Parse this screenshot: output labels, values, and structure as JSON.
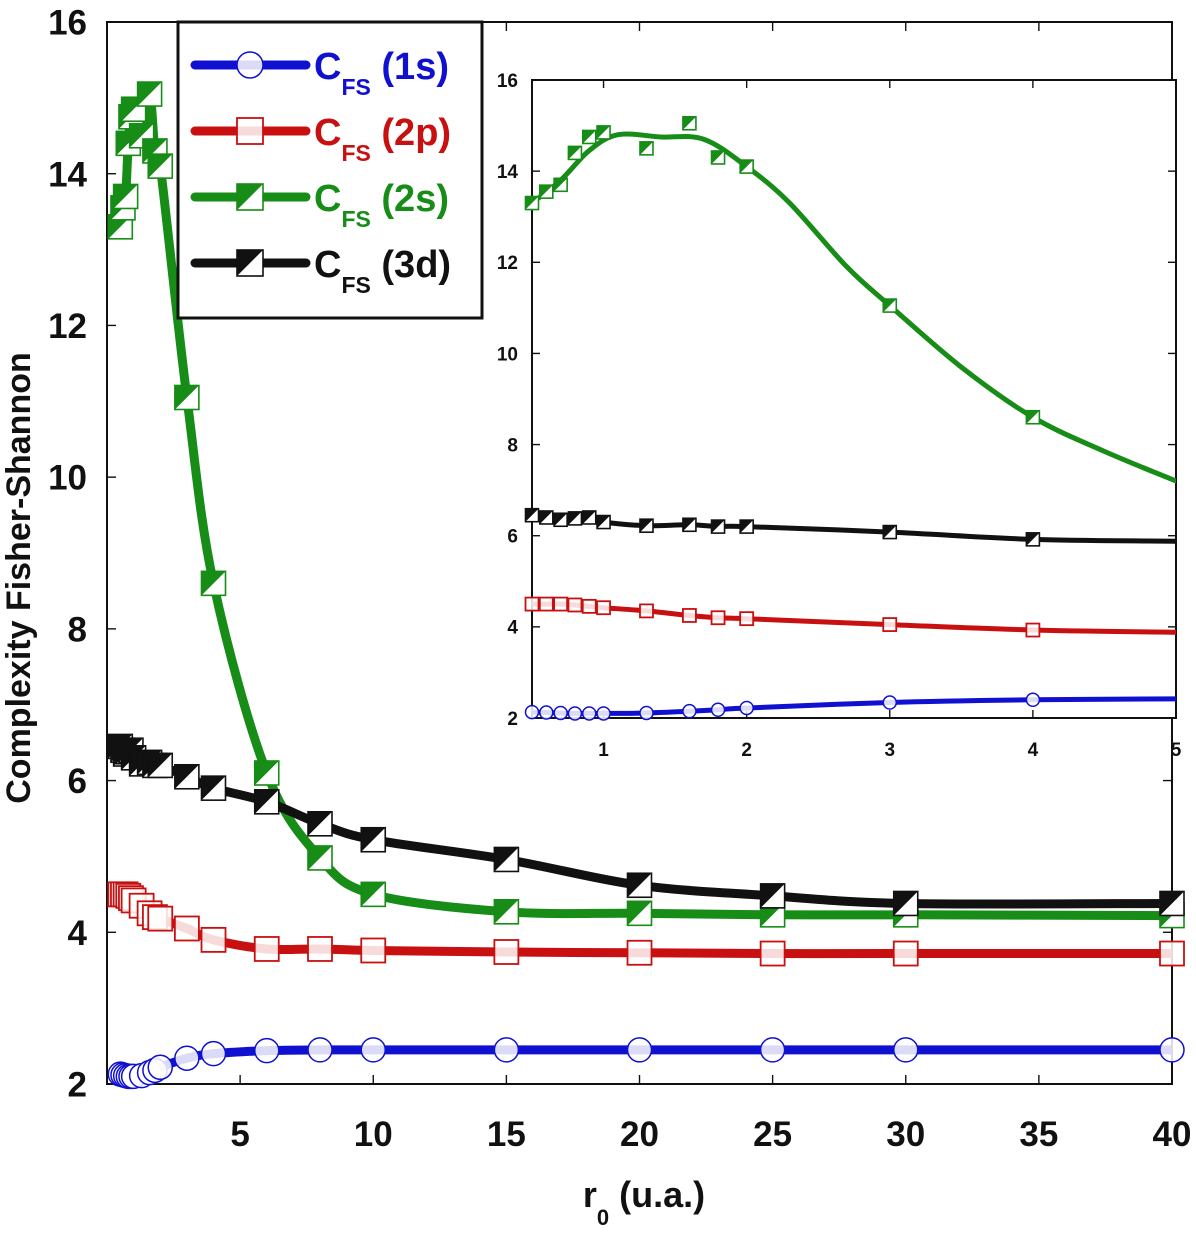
{
  "chart_data": [
    {
      "id": "main",
      "type": "line",
      "title": "",
      "xlabel_main": "r",
      "xlabel_sub": "0",
      "xlabel_tail": " (u.a.)",
      "ylabel": "Complexity Fisher-Shannon",
      "xlim": [
        0,
        40
      ],
      "ylim": [
        2,
        16
      ],
      "x_ticks": [
        5,
        10,
        15,
        20,
        25,
        30,
        35,
        40
      ],
      "y_ticks": [
        2,
        4,
        6,
        8,
        10,
        12,
        14,
        16
      ],
      "grid": false,
      "series": [
        {
          "key": "s1s",
          "color": "#1010d0",
          "marker": "circle",
          "x": [
            0.5,
            0.6,
            0.7,
            0.8,
            0.9,
            1.0,
            1.3,
            1.6,
            1.8,
            2,
            3,
            4,
            6,
            8,
            10,
            15,
            20,
            25,
            30,
            40
          ],
          "values": [
            2.13,
            2.12,
            2.11,
            2.1,
            2.1,
            2.1,
            2.11,
            2.15,
            2.18,
            2.22,
            2.34,
            2.4,
            2.44,
            2.45,
            2.45,
            2.45,
            2.45,
            2.45,
            2.45,
            2.45
          ]
        },
        {
          "key": "s2p",
          "color": "#c81010",
          "marker": "square",
          "x": [
            0.5,
            0.6,
            0.7,
            0.8,
            0.9,
            1.0,
            1.3,
            1.6,
            1.8,
            2,
            3,
            4,
            6,
            8,
            10,
            15,
            20,
            25,
            30,
            40
          ],
          "values": [
            4.5,
            4.5,
            4.5,
            4.48,
            4.45,
            4.42,
            4.35,
            4.25,
            4.2,
            4.18,
            4.05,
            3.9,
            3.78,
            3.78,
            3.76,
            3.74,
            3.73,
            3.72,
            3.72,
            3.72
          ]
        },
        {
          "key": "s2s",
          "color": "#178c17",
          "marker": "half-square",
          "x": [
            0.5,
            0.6,
            0.7,
            0.8,
            0.9,
            1.0,
            1.3,
            1.6,
            1.8,
            2,
            3,
            4,
            6,
            8,
            10,
            15,
            20,
            25,
            30,
            40
          ],
          "values": [
            13.3,
            13.55,
            13.7,
            14.4,
            14.75,
            14.85,
            14.5,
            15.05,
            14.3,
            14.1,
            11.05,
            8.6,
            6.1,
            4.98,
            4.5,
            4.27,
            4.25,
            4.23,
            4.23,
            4.22
          ]
        },
        {
          "key": "s3d",
          "color": "#111111",
          "marker": "half-square",
          "x": [
            0.5,
            0.6,
            0.7,
            0.8,
            0.9,
            1.0,
            1.3,
            1.6,
            1.8,
            2,
            3,
            4,
            6,
            8,
            10,
            15,
            20,
            25,
            30,
            40
          ],
          "values": [
            6.45,
            6.4,
            6.35,
            6.38,
            6.4,
            6.3,
            6.22,
            6.24,
            6.2,
            6.2,
            6.05,
            5.9,
            5.72,
            5.43,
            5.22,
            4.96,
            4.62,
            4.48,
            4.38,
            4.38
          ]
        }
      ]
    },
    {
      "id": "inset",
      "type": "line",
      "xlim": [
        0.5,
        5
      ],
      "ylim": [
        2,
        16
      ],
      "x_ticks": [
        1,
        2,
        3,
        4,
        5
      ],
      "y_ticks": [
        2,
        4,
        6,
        8,
        10,
        12,
        14,
        16
      ],
      "grid": false,
      "series": [
        {
          "key": "s1s",
          "color": "#1010d0",
          "marker": "circle",
          "x": [
            0.5,
            0.6,
            0.7,
            0.8,
            0.9,
            1.0,
            1.3,
            1.6,
            1.8,
            2,
            3,
            4,
            5
          ],
          "values": [
            2.13,
            2.12,
            2.11,
            2.1,
            2.1,
            2.1,
            2.11,
            2.15,
            2.18,
            2.22,
            2.34,
            2.4,
            2.42
          ],
          "marker_count": 12
        },
        {
          "key": "s2p",
          "color": "#c81010",
          "marker": "square",
          "x": [
            0.5,
            0.6,
            0.7,
            0.8,
            0.9,
            1.0,
            1.3,
            1.6,
            1.8,
            2,
            3,
            4,
            5
          ],
          "values": [
            4.5,
            4.5,
            4.5,
            4.48,
            4.45,
            4.42,
            4.35,
            4.25,
            4.2,
            4.18,
            4.05,
            3.93,
            3.88
          ],
          "marker_count": 12
        },
        {
          "key": "s2s",
          "color": "#178c17",
          "marker": "half-square",
          "x": [
            0.5,
            0.6,
            0.7,
            0.8,
            0.9,
            1.0,
            1.3,
            1.6,
            1.8,
            2,
            3,
            4
          ],
          "values": [
            13.3,
            13.55,
            13.7,
            14.4,
            14.75,
            14.85,
            14.5,
            15.05,
            14.3,
            14.1,
            11.05,
            8.6
          ],
          "marker_count": 12,
          "curve_x": [
            0.5,
            0.7,
            0.9,
            1.1,
            1.4,
            1.7,
            2.0,
            2.3,
            2.7,
            3.0,
            3.5,
            4.0,
            4.5,
            5.0
          ],
          "curve_values": [
            13.3,
            13.8,
            14.45,
            14.8,
            14.75,
            14.7,
            14.1,
            13.3,
            11.9,
            11.05,
            9.7,
            8.6,
            7.85,
            7.2
          ]
        },
        {
          "key": "s3d",
          "color": "#111111",
          "marker": "half-square",
          "x": [
            0.5,
            0.6,
            0.7,
            0.8,
            0.9,
            1.0,
            1.3,
            1.6,
            1.8,
            2,
            3,
            4,
            5
          ],
          "values": [
            6.45,
            6.4,
            6.35,
            6.38,
            6.4,
            6.3,
            6.22,
            6.24,
            6.2,
            6.2,
            6.08,
            5.92,
            5.88
          ],
          "marker_count": 12
        }
      ]
    }
  ],
  "legend": {
    "entries": [
      {
        "key": "s1s",
        "main": "C",
        "sub": "FS",
        "tail": " (1s)",
        "color": "#1010d0",
        "marker": "circle"
      },
      {
        "key": "s2p",
        "main": "C",
        "sub": "FS",
        "tail": " (2p)",
        "color": "#c81010",
        "marker": "square"
      },
      {
        "key": "s2s",
        "main": "C",
        "sub": "FS",
        "tail": " (2s)",
        "color": "#178c17",
        "marker": "half-square"
      },
      {
        "key": "s3d",
        "main": "C",
        "sub": "FS",
        "tail": " (3d)",
        "color": "#111111",
        "marker": "half-square"
      }
    ]
  }
}
